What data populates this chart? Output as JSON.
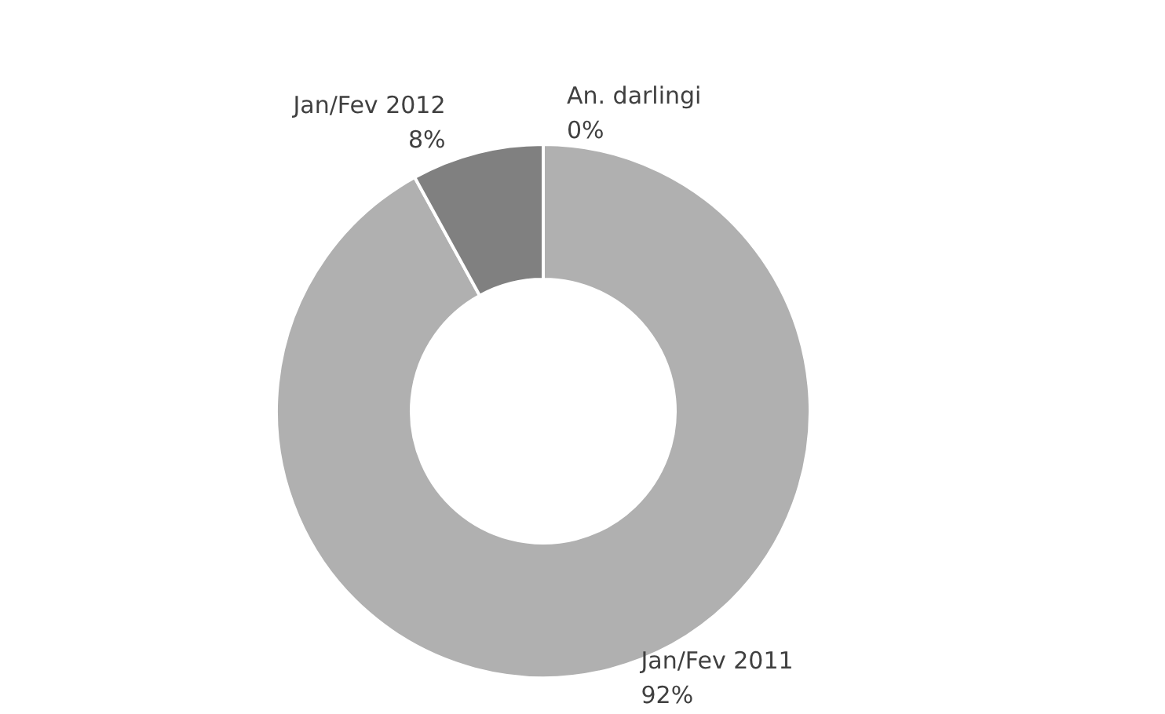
{
  "chart_data": {
    "type": "donut",
    "categories": [
      "Jan/Fev 2011",
      "Jan/Fev 2012",
      "An. darlingi"
    ],
    "values": [
      92,
      8,
      0
    ],
    "colors": [
      "#b0b0b0",
      "#808080",
      "#5a5a5a"
    ],
    "value_labels": [
      "92%",
      "8%",
      "0%"
    ],
    "legend": false
  }
}
